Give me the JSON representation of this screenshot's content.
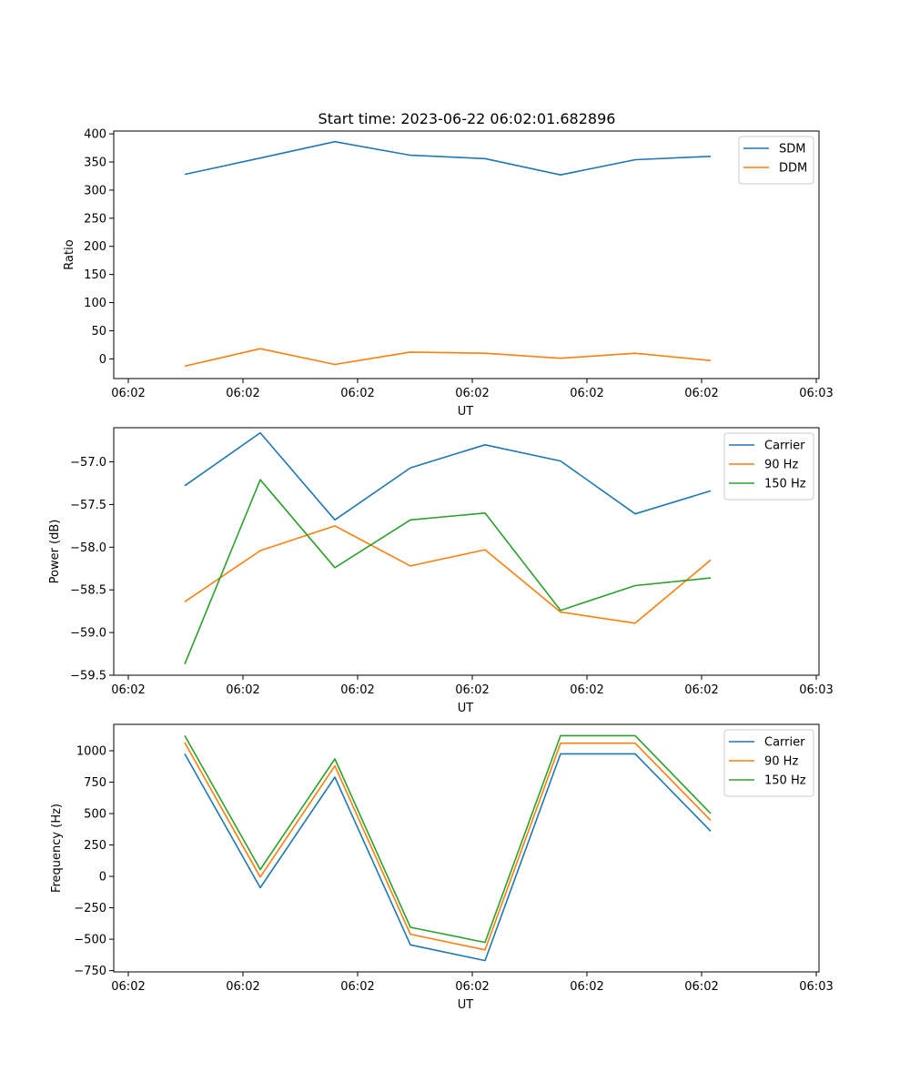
{
  "figure_title": "Start time: 2023-06-22 06:02:01.682896",
  "colors": {
    "blue": "#1f77b4",
    "orange": "#ff7f0e",
    "green": "#2ca02c"
  },
  "chart_data": [
    {
      "type": "line",
      "title": "Start time: 2023-06-22 06:02:01.682896",
      "xlabel": "UT",
      "ylabel": "Ratio",
      "x_tick_labels": [
        "06:02",
        "06:02",
        "06:02",
        "06:02",
        "06:02",
        "06:02",
        "06:03"
      ],
      "y_ticks": [
        0,
        50,
        100,
        150,
        200,
        250,
        300,
        350,
        400
      ],
      "ylim": [
        -35,
        405
      ],
      "legend_position": "upper-right",
      "grid": false,
      "series": [
        {
          "name": "SDM",
          "color": "#1f77b4",
          "values": [
            328,
            357,
            386,
            362,
            356,
            327,
            354,
            360
          ]
        },
        {
          "name": "DDM",
          "color": "#ff7f0e",
          "values": [
            -13,
            18,
            -10,
            12,
            10,
            1,
            10,
            -3
          ]
        }
      ]
    },
    {
      "type": "line",
      "xlabel": "UT",
      "ylabel": "Power (dB)",
      "x_tick_labels": [
        "06:02",
        "06:02",
        "06:02",
        "06:02",
        "06:02",
        "06:02",
        "06:03"
      ],
      "y_ticks": [
        -57.0,
        -57.5,
        -58.0,
        -58.5,
        -59.0,
        -59.5
      ],
      "y_tick_labels": [
        "−57.0",
        "−57.5",
        "−58.0",
        "−58.5",
        "−59.0",
        "−59.5"
      ],
      "ylim": [
        -59.5,
        -56.6
      ],
      "legend_position": "upper-right",
      "grid": false,
      "series": [
        {
          "name": "Carrier",
          "color": "#1f77b4",
          "values": [
            -57.28,
            -56.66,
            -57.68,
            -57.07,
            -56.8,
            -56.99,
            -57.61,
            -57.34
          ]
        },
        {
          "name": "90 Hz",
          "color": "#ff7f0e",
          "values": [
            -58.64,
            -58.04,
            -57.75,
            -58.22,
            -58.03,
            -58.76,
            -58.89,
            -58.15
          ]
        },
        {
          "name": "150 Hz",
          "color": "#2ca02c",
          "values": [
            -59.37,
            -57.21,
            -58.24,
            -57.68,
            -57.6,
            -58.74,
            -58.45,
            -58.36
          ]
        }
      ]
    },
    {
      "type": "line",
      "xlabel": "UT",
      "ylabel": "Frequency (Hz)",
      "x_tick_labels": [
        "06:02",
        "06:02",
        "06:02",
        "06:02",
        "06:02",
        "06:02",
        "06:03"
      ],
      "y_ticks": [
        1000,
        750,
        500,
        250,
        0,
        -250,
        -500,
        -750
      ],
      "y_tick_labels": [
        "1000",
        "750",
        "500",
        "250",
        "0",
        "−250",
        "−500",
        "−750"
      ],
      "ylim": [
        -760,
        1210
      ],
      "legend_position": "upper-right",
      "grid": false,
      "series": [
        {
          "name": "Carrier",
          "color": "#1f77b4",
          "values": [
            975,
            -90,
            790,
            -545,
            -670,
            975,
            975,
            360
          ]
        },
        {
          "name": "90 Hz",
          "color": "#ff7f0e",
          "values": [
            1065,
            -5,
            880,
            -460,
            -585,
            1060,
            1060,
            445
          ]
        },
        {
          "name": "150 Hz",
          "color": "#2ca02c",
          "values": [
            1120,
            55,
            935,
            -405,
            -525,
            1120,
            1120,
            500
          ]
        }
      ]
    }
  ]
}
